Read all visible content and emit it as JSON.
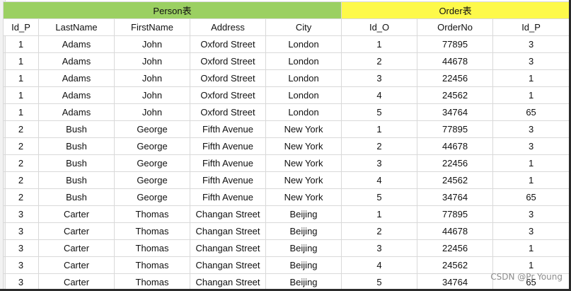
{
  "groups": {
    "person": "Person表",
    "order": "Order表"
  },
  "columns": [
    "Id_P",
    "LastName",
    "FirstName",
    "Address",
    "City",
    "Id_O",
    "OrderNo",
    "Id_P"
  ],
  "rows": [
    [
      "1",
      "Adams",
      "John",
      "Oxford Street",
      "London",
      "1",
      "77895",
      "3"
    ],
    [
      "1",
      "Adams",
      "John",
      "Oxford Street",
      "London",
      "2",
      "44678",
      "3"
    ],
    [
      "1",
      "Adams",
      "John",
      "Oxford Street",
      "London",
      "3",
      "22456",
      "1"
    ],
    [
      "1",
      "Adams",
      "John",
      "Oxford Street",
      "London",
      "4",
      "24562",
      "1"
    ],
    [
      "1",
      "Adams",
      "John",
      "Oxford Street",
      "London",
      "5",
      "34764",
      "65"
    ],
    [
      "2",
      "Bush",
      "George",
      "Fifth Avenue",
      "New York",
      "1",
      "77895",
      "3"
    ],
    [
      "2",
      "Bush",
      "George",
      "Fifth Avenue",
      "New York",
      "2",
      "44678",
      "3"
    ],
    [
      "2",
      "Bush",
      "George",
      "Fifth Avenue",
      "New York",
      "3",
      "22456",
      "1"
    ],
    [
      "2",
      "Bush",
      "George",
      "Fifth Avenue",
      "New York",
      "4",
      "24562",
      "1"
    ],
    [
      "2",
      "Bush",
      "George",
      "Fifth Avenue",
      "New York",
      "5",
      "34764",
      "65"
    ],
    [
      "3",
      "Carter",
      "Thomas",
      "Changan Street",
      "Beijing",
      "1",
      "77895",
      "3"
    ],
    [
      "3",
      "Carter",
      "Thomas",
      "Changan Street",
      "Beijing",
      "2",
      "44678",
      "3"
    ],
    [
      "3",
      "Carter",
      "Thomas",
      "Changan Street",
      "Beijing",
      "3",
      "22456",
      "1"
    ],
    [
      "3",
      "Carter",
      "Thomas",
      "Changan Street",
      "Beijing",
      "4",
      "24562",
      "1"
    ],
    [
      "3",
      "Carter",
      "Thomas",
      "Changan Street",
      "Beijing",
      "5",
      "34764",
      "65"
    ]
  ],
  "watermark": "CSDN @Pr Young",
  "colors": {
    "person_header": "#9bd062",
    "order_header": "#fdf94a",
    "grid_line": "#d9d9d9"
  }
}
